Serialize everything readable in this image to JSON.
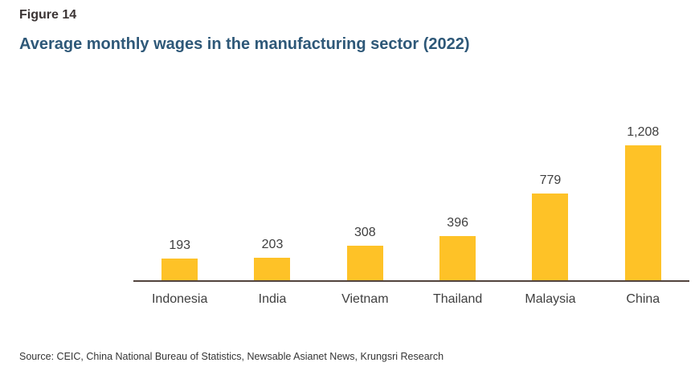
{
  "figure_label": "Figure 14",
  "title": "Average monthly wages in the manufacturing sector (2022)",
  "source": "Source: CEIC, China National Bureau of Statistics, Newsable Asianet News, Krungsri Research",
  "colors": {
    "bar": "#FEC227",
    "title": "#2E5878",
    "axis": "#52433D",
    "labels": "#3F3F3F",
    "figure_label": "#3B3434"
  },
  "chart_data": {
    "type": "bar",
    "categories": [
      "Indonesia",
      "India",
      "Vietnam",
      "Thailand",
      "Malaysia",
      "China"
    ],
    "values": [
      193,
      203,
      308,
      396,
      779,
      1208
    ],
    "value_labels": [
      "193",
      "203",
      "308",
      "396",
      "779",
      "1,208"
    ],
    "title": "Average monthly wages in the manufacturing sector (2022)",
    "xlabel": "",
    "ylabel": "",
    "ylim": [
      0,
      1300
    ],
    "grid": false,
    "legend": false,
    "bar_color": "#FEC227",
    "data_labels": "above bars",
    "baseline_axis_only": true
  }
}
